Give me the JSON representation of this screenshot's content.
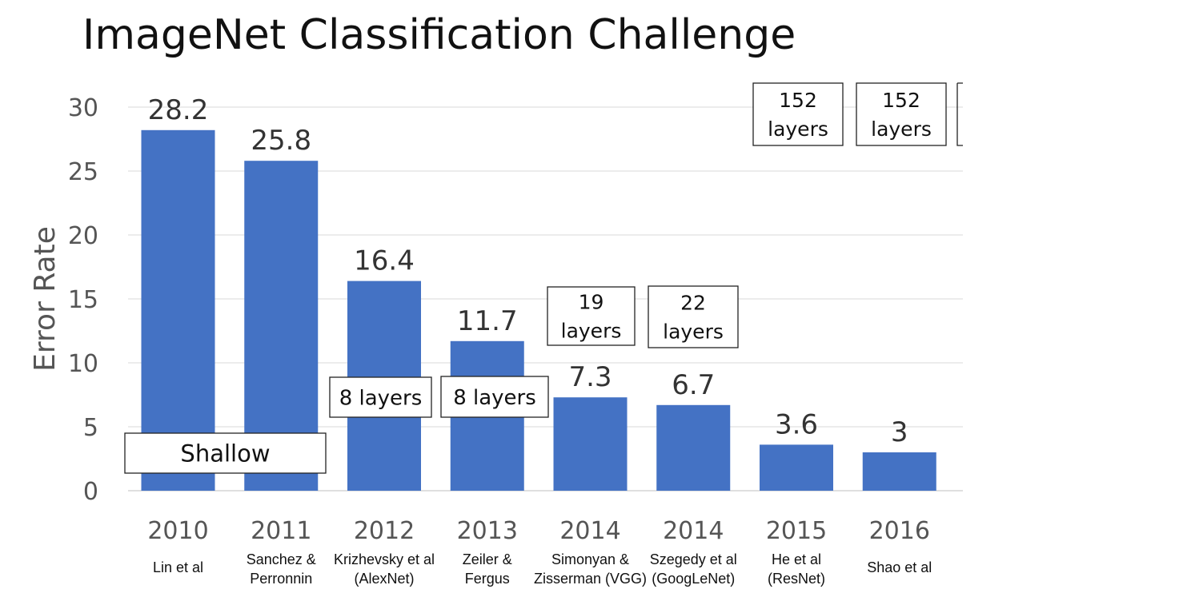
{
  "slide": {
    "title": "ImageNet Classification Challenge"
  },
  "chart_data": {
    "type": "bar",
    "title": "ImageNet Classification Challenge",
    "ylabel": "Error Rate",
    "xlabel": "",
    "ylim": [
      0,
      30
    ],
    "yticks": [
      0,
      5,
      10,
      15,
      20,
      25,
      30
    ],
    "grid": true,
    "bar_color": "#4472C4",
    "categories": [
      "2010",
      "2011",
      "2012",
      "2013",
      "2014",
      "2014",
      "2015",
      "2016"
    ],
    "authors": [
      [
        "Lin et al"
      ],
      [
        "Sanchez &",
        "Perronnin"
      ],
      [
        "Krizhevsky et al",
        "(AlexNet)"
      ],
      [
        "Zeiler &",
        "Fergus"
      ],
      [
        "Simonyan &",
        "Zisserman (VGG)"
      ],
      [
        "Szegedy et al",
        "(GoogLeNet)"
      ],
      [
        "He et al",
        "(ResNet)"
      ],
      [
        "Shao et al"
      ]
    ],
    "values": [
      28.2,
      25.8,
      16.4,
      11.7,
      7.3,
      6.7,
      3.6,
      3
    ],
    "value_labels": [
      "28.2",
      "25.8",
      "16.4",
      "11.7",
      "7.3",
      "6.7",
      "3.6",
      "3"
    ],
    "annotations": [
      {
        "lines": [
          "Shallow"
        ],
        "applies_to": [
          0,
          1
        ]
      },
      {
        "lines": [
          "8 layers"
        ],
        "applies_to": [
          2
        ]
      },
      {
        "lines": [
          "8 layers"
        ],
        "applies_to": [
          3
        ]
      },
      {
        "lines": [
          "19",
          "layers"
        ],
        "applies_to": [
          4
        ]
      },
      {
        "lines": [
          "22",
          "layers"
        ],
        "applies_to": [
          5
        ]
      },
      {
        "lines": [
          "152",
          "layers"
        ],
        "applies_to": [
          6
        ]
      },
      {
        "lines": [
          "152",
          "layers"
        ],
        "applies_to": [
          7
        ]
      }
    ]
  }
}
